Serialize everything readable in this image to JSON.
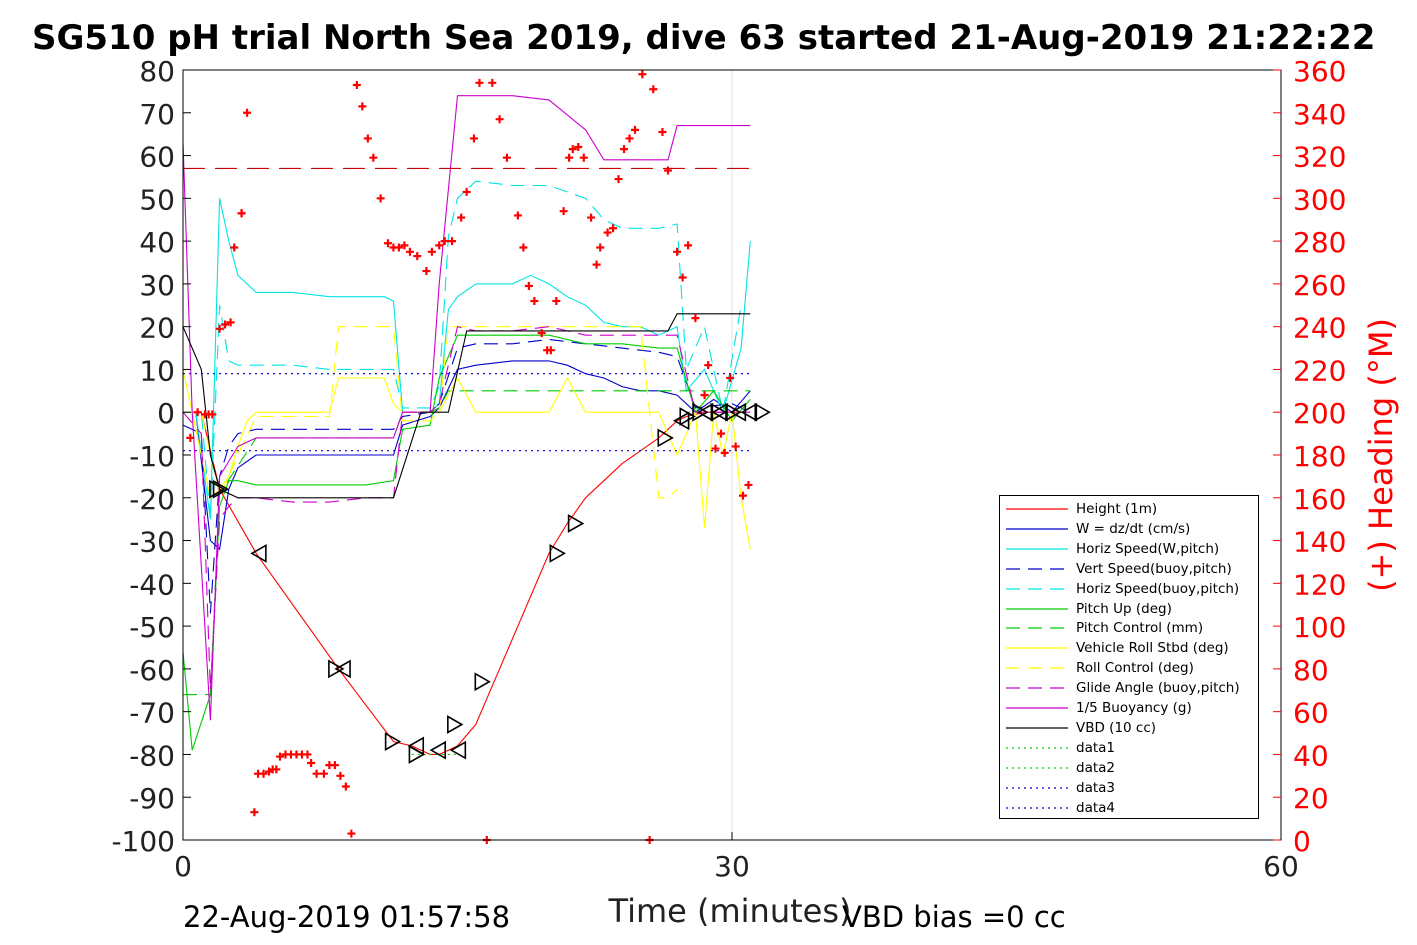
{
  "title": "SG510 pH trial North Sea 2019, dive 63 started 21-Aug-2019 21:22:22",
  "footer": {
    "timestamp": "22-Aug-2019 01:57:58",
    "vbd_bias": "VBD bias =0 cc"
  },
  "chart_data": {
    "type": "line",
    "xlabel": "Time (minutes)",
    "ylabel_right": "(+) Heading (°M)",
    "xlim": [
      0,
      60
    ],
    "ylim": [
      -100,
      80
    ],
    "ylim_right": [
      0,
      360
    ],
    "xticks": [
      0,
      30,
      60
    ],
    "yticks": [
      -100,
      -90,
      -80,
      -70,
      -60,
      -50,
      -40,
      -30,
      -20,
      -10,
      0,
      10,
      20,
      30,
      40,
      50,
      60,
      70,
      80
    ],
    "yticks_right": [
      0,
      20,
      40,
      60,
      80,
      100,
      120,
      140,
      160,
      180,
      200,
      220,
      240,
      260,
      280,
      300,
      320,
      340,
      360
    ],
    "grid": "x only",
    "legend_position": "lower right",
    "colors": {
      "height": "#ff0000",
      "w": "#0000cc",
      "horiz": "#00e5e5",
      "vert_buoy": "#0000cc",
      "horiz_buoy": "#00e5e5",
      "pitch": "#00cc00",
      "pitch_ctrl": "#00cc00",
      "roll": "#ffff00",
      "roll_ctrl": "#ffff00",
      "glide": "#cc00cc",
      "buoy": "#cc00cc",
      "vbd": "#000000",
      "heading_axis": "#ff0000"
    },
    "legend": [
      {
        "label": "Height (1m)",
        "color": "#ff0000",
        "dash": "solid"
      },
      {
        "label": "W = dz/dt (cm/s)",
        "color": "#0000cc",
        "dash": "solid"
      },
      {
        "label": "Horiz Speed(W,pitch)",
        "color": "#00e5e5",
        "dash": "solid"
      },
      {
        "label": "Vert Speed(buoy,pitch)",
        "color": "#0000cc",
        "dash": "dashed"
      },
      {
        "label": "Horiz Speed(buoy,pitch)",
        "color": "#00e5e5",
        "dash": "dashed"
      },
      {
        "label": "Pitch Up (deg)",
        "color": "#00cc00",
        "dash": "solid"
      },
      {
        "label": "Pitch Control (mm)",
        "color": "#00cc00",
        "dash": "dashed"
      },
      {
        "label": "Vehicle Roll Stbd (deg)",
        "color": "#ffff00",
        "dash": "solid"
      },
      {
        "label": "Roll Control (deg)",
        "color": "#ffff00",
        "dash": "dashed"
      },
      {
        "label": "Glide Angle (buoy,pitch)",
        "color": "#cc00cc",
        "dash": "dashed"
      },
      {
        "label": "1/5 Buoyancy (g)",
        "color": "#cc00cc",
        "dash": "solid"
      },
      {
        "label": "VBD (10 cc)",
        "color": "#000000",
        "dash": "solid"
      },
      {
        "label": "data1",
        "color": "#00cc00",
        "dash": "dotted"
      },
      {
        "label": "data2",
        "color": "#00cc00",
        "dash": "dotted"
      },
      {
        "label": "data3",
        "color": "#0000cc",
        "dash": "dotted"
      },
      {
        "label": "data4",
        "color": "#0000cc",
        "dash": "dotted"
      }
    ],
    "series": [
      {
        "key": "height",
        "color": "#ff0000",
        "dash": "solid",
        "x": [
          0,
          1,
          2,
          4,
          8.5,
          11.5,
          12.5,
          13.5,
          14,
          14.5,
          15,
          16,
          17,
          20,
          21,
          22,
          24,
          26,
          27,
          27.5,
          28.5,
          29.5,
          30.5
        ],
        "y": [
          0,
          0,
          -18,
          -33,
          -60,
          -77,
          -78,
          -80,
          -80,
          -79,
          -78,
          -73,
          -63,
          -33,
          -26,
          -20,
          -12,
          -6,
          -2,
          -1,
          0,
          0,
          0
        ]
      },
      {
        "key": "w",
        "color": "#0000cc",
        "dash": "solid",
        "x": [
          0,
          0.7,
          1.5,
          2,
          2.5,
          3,
          4,
          6,
          8,
          10,
          11.5,
          12,
          13.5,
          14,
          15,
          16,
          18,
          20,
          21,
          22,
          23,
          24,
          25,
          26,
          27,
          28,
          29,
          30,
          31
        ],
        "y": [
          0,
          0,
          -30,
          -32,
          -18,
          -13,
          -10,
          -10,
          -10,
          -10,
          -10,
          -3,
          -1,
          1,
          10,
          11,
          12,
          12,
          11,
          9,
          8,
          6,
          5,
          5,
          4,
          0,
          3,
          0,
          5
        ]
      },
      {
        "key": "horiz",
        "color": "#00e5e5",
        "dash": "solid",
        "x": [
          0,
          0.7,
          1.5,
          2,
          2.5,
          3,
          3.5,
          4,
          6,
          8,
          10,
          11,
          11.5,
          12,
          13.5,
          14,
          14.5,
          15,
          16,
          18,
          19,
          20,
          21,
          22,
          23,
          24,
          25,
          26,
          27,
          27.5,
          28.5,
          29.5,
          30.5,
          31
        ],
        "y": [
          0,
          0,
          -25,
          50,
          40,
          32,
          30,
          28,
          28,
          27,
          27,
          27,
          26,
          0,
          0,
          2,
          24,
          27,
          30,
          30,
          32,
          30,
          27,
          25,
          21,
          20,
          20,
          18,
          20,
          5,
          10,
          0,
          15,
          40
        ]
      },
      {
        "key": "vert_buoy",
        "color": "#0000cc",
        "dash": "dashed",
        "x": [
          0,
          1,
          1.5,
          2,
          2.5,
          3,
          4,
          6,
          8,
          10,
          11.5,
          12,
          13.5,
          14,
          15,
          16,
          18,
          20,
          22,
          24,
          26,
          27,
          28,
          30,
          31
        ],
        "y": [
          -3,
          -5,
          -47,
          -15,
          -8,
          -5,
          -4,
          -4,
          -4,
          -4,
          -4,
          -1,
          0,
          2,
          15,
          16,
          16,
          17,
          16,
          15,
          14,
          13,
          1,
          2,
          0
        ]
      },
      {
        "key": "horiz_buoy",
        "color": "#00e5e5",
        "dash": "dashed",
        "x": [
          0,
          1,
          1.5,
          2,
          2.5,
          3,
          4,
          6,
          8,
          10,
          11.5,
          12,
          13.5,
          14,
          14.5,
          15,
          16,
          18,
          20,
          22,
          23,
          24,
          25,
          26,
          27,
          27.5,
          28.5,
          29.5,
          30.5
        ],
        "y": [
          0,
          0,
          -25,
          25,
          12,
          11,
          11,
          11,
          10,
          10,
          10,
          1,
          1,
          6,
          41,
          50,
          54,
          53,
          53,
          50,
          45,
          43,
          43,
          43,
          44,
          10,
          20,
          0,
          25
        ]
      },
      {
        "key": "pitch",
        "color": "#00cc00",
        "dash": "solid",
        "x": [
          0,
          0.5,
          1.5,
          2,
          2.5,
          3,
          4,
          6,
          8,
          10,
          11.5,
          12,
          13.5,
          14,
          15,
          16,
          18,
          20,
          22,
          24,
          26,
          27,
          28,
          29,
          30,
          31
        ],
        "y": [
          -56,
          -79,
          -66,
          -22,
          -16,
          -16,
          -17,
          -17,
          -17,
          -17,
          -16,
          -4,
          -3,
          8,
          18,
          18,
          18,
          18,
          16,
          16,
          15,
          15,
          0,
          5,
          -2,
          3
        ]
      },
      {
        "key": "pitch_ctrl",
        "color": "#00cc00",
        "dash": "dashed",
        "x": [
          0,
          1.5,
          2,
          4,
          6,
          8,
          10,
          11.5,
          12,
          13.5,
          14,
          14.5,
          16,
          20,
          24,
          27,
          28,
          31
        ],
        "y": [
          -66,
          -66,
          -19,
          -6,
          -6,
          -6,
          -6,
          -6,
          0,
          0,
          1,
          5,
          5,
          5,
          5,
          5,
          5,
          5
        ]
      },
      {
        "key": "roll",
        "color": "#ffff00",
        "dash": "solid",
        "x": [
          0,
          0.5,
          1,
          1.5,
          2,
          2.5,
          3,
          3.5,
          4,
          6,
          8,
          8.5,
          9,
          11,
          11.5,
          12,
          13.5,
          14,
          15,
          16,
          18,
          19,
          20,
          21,
          22,
          23,
          24,
          25,
          26,
          27,
          27.5,
          28,
          28.5,
          29,
          29.5,
          30,
          30.5,
          31
        ],
        "y": [
          10,
          0,
          -10,
          -20,
          -18,
          -15,
          -8,
          -2,
          0,
          0,
          0,
          8,
          8,
          8,
          2,
          0,
          0,
          0,
          8,
          0,
          0,
          0,
          0,
          8,
          0,
          0,
          0,
          0,
          0,
          -10,
          -5,
          0,
          -27,
          0,
          -10,
          0,
          -20,
          -32
        ]
      },
      {
        "key": "roll_ctrl",
        "color": "#ffff00",
        "dash": "dashed",
        "x": [
          0,
          1,
          2,
          3,
          4,
          6,
          8,
          8.5,
          9,
          11,
          11.5,
          12,
          13.5,
          14,
          14.5,
          15,
          16,
          18,
          20,
          22,
          24,
          25,
          26,
          26.5,
          27
        ],
        "y": [
          0,
          0,
          -20,
          -10,
          -1,
          -1,
          -1,
          20,
          20,
          20,
          20,
          -2,
          -2,
          0,
          20,
          20,
          20,
          20,
          20,
          20,
          20,
          20,
          -20,
          -20,
          -18
        ]
      },
      {
        "key": "glide",
        "color": "#cc00cc",
        "dash": "dashed",
        "x": [
          0,
          1,
          1.5,
          2,
          2.5,
          3,
          4,
          6,
          8,
          10,
          11.5,
          12,
          13.5,
          14,
          15,
          16,
          18,
          20,
          22,
          24,
          26,
          27,
          28,
          30,
          31
        ],
        "y": [
          0,
          -5,
          -65,
          -25,
          -22,
          -20,
          -20,
          -21,
          -21,
          -20,
          -20,
          0,
          0,
          2,
          20,
          19,
          19,
          20,
          18,
          18,
          18,
          18,
          0,
          0,
          0
        ]
      },
      {
        "key": "buoy",
        "color": "#cc00cc",
        "dash": "solid",
        "x": [
          0,
          0.5,
          1.5,
          2,
          3,
          4,
          6,
          8,
          10,
          11.5,
          12,
          13.5,
          14,
          15,
          16,
          18,
          20,
          22,
          23,
          24,
          25,
          26,
          26.5,
          27,
          31
        ],
        "y": [
          63,
          0,
          -72,
          -15,
          -8,
          -6,
          -6,
          -6,
          -6,
          -6,
          0,
          0,
          30,
          74,
          74,
          74,
          73,
          66,
          59,
          59,
          59,
          59,
          59,
          67,
          67
        ]
      },
      {
        "key": "vbd",
        "color": "#000000",
        "dash": "solid",
        "x": [
          0,
          1,
          1.5,
          2,
          3,
          4,
          6,
          8,
          10,
          11.5,
          13,
          14.5,
          15.5,
          16,
          18,
          20,
          22,
          24,
          26,
          26.5,
          27,
          31
        ],
        "y": [
          20,
          10,
          -10,
          -18,
          -20,
          -20,
          -20,
          -20,
          -20,
          -20,
          0,
          0,
          19,
          19,
          19,
          19,
          19,
          19,
          19,
          19,
          23,
          23
        ]
      },
      {
        "key": "pitch_ref",
        "color": "#cc0000",
        "dash": "longdash",
        "x": [
          0,
          31
        ],
        "y": [
          57,
          57
        ]
      },
      {
        "key": "data3",
        "color": "#0000cc",
        "dash": "dotted",
        "x": [
          0,
          31
        ],
        "y": [
          9,
          9
        ]
      },
      {
        "key": "data4",
        "color": "#0000cc",
        "dash": "dotted",
        "x": [
          0,
          31
        ],
        "y": [
          -9,
          -9
        ]
      },
      {
        "key": "data1",
        "color": "#00cc00",
        "dash": "dotted",
        "x": [
          12.5,
          15
        ],
        "y": [
          -80,
          -80
        ]
      }
    ],
    "heading_points": [
      [
        0.4,
        188
      ],
      [
        0.8,
        200
      ],
      [
        1.2,
        199
      ],
      [
        1.4,
        199
      ],
      [
        1.6,
        199
      ],
      [
        2,
        239
      ],
      [
        2.3,
        241
      ],
      [
        2.6,
        242
      ],
      [
        2.8,
        277
      ],
      [
        3.2,
        293
      ],
      [
        3.2,
        293
      ],
      [
        3.5,
        340
      ],
      [
        3.9,
        13
      ],
      [
        4.1,
        31
      ],
      [
        4.4,
        31
      ],
      [
        4.7,
        32
      ],
      [
        4.9,
        33
      ],
      [
        5.1,
        33
      ],
      [
        5.3,
        39
      ],
      [
        5.6,
        40
      ],
      [
        5.9,
        40
      ],
      [
        6.2,
        40
      ],
      [
        6.5,
        40
      ],
      [
        6.8,
        40
      ],
      [
        7,
        36
      ],
      [
        7.3,
        31
      ],
      [
        7.7,
        31
      ],
      [
        8,
        35
      ],
      [
        8.3,
        35
      ],
      [
        8.6,
        30
      ],
      [
        8.9,
        25
      ],
      [
        9.2,
        3
      ],
      [
        9.5,
        353
      ],
      [
        9.8,
        343
      ],
      [
        10.1,
        328
      ],
      [
        10.4,
        319
      ],
      [
        10.8,
        300
      ],
      [
        11.2,
        279
      ],
      [
        11.5,
        277
      ],
      [
        11.8,
        277
      ],
      [
        12.1,
        278
      ],
      [
        12.4,
        275
      ],
      [
        12.8,
        273
      ],
      [
        13.3,
        266
      ],
      [
        13.6,
        275
      ],
      [
        14,
        278
      ],
      [
        14.3,
        280
      ],
      [
        14.7,
        280
      ],
      [
        15.2,
        291
      ],
      [
        15.5,
        303
      ],
      [
        15.9,
        328
      ],
      [
        16.2,
        354
      ],
      [
        16.6,
        0
      ],
      [
        16.9,
        354
      ],
      [
        17.3,
        337
      ],
      [
        17.7,
        319
      ],
      [
        18.3,
        292
      ],
      [
        18.6,
        277
      ],
      [
        18.9,
        259
      ],
      [
        19.2,
        252
      ],
      [
        19.6,
        237
      ],
      [
        19.9,
        229
      ],
      [
        20.1,
        229
      ],
      [
        20.4,
        252
      ],
      [
        20.8,
        294
      ],
      [
        21.1,
        319
      ],
      [
        21.3,
        323
      ],
      [
        21.6,
        324
      ],
      [
        21.9,
        319
      ],
      [
        22.3,
        291
      ],
      [
        22.6,
        269
      ],
      [
        22.8,
        277
      ],
      [
        23.2,
        284
      ],
      [
        23.5,
        286
      ],
      [
        23.8,
        309
      ],
      [
        24.1,
        323
      ],
      [
        24.4,
        328
      ],
      [
        24.7,
        332
      ],
      [
        25.1,
        358
      ],
      [
        25.5,
        0
      ],
      [
        25.7,
        351
      ],
      [
        26.2,
        331
      ],
      [
        26.5,
        313
      ],
      [
        27,
        275
      ],
      [
        27.3,
        263
      ],
      [
        27.6,
        278
      ],
      [
        28,
        244
      ],
      [
        28.5,
        208
      ],
      [
        28.7,
        222
      ],
      [
        29.1,
        183
      ],
      [
        29.4,
        190
      ],
      [
        29.6,
        181
      ],
      [
        29.9,
        216
      ],
      [
        30.2,
        184
      ],
      [
        30.6,
        161
      ],
      [
        30.9,
        166
      ]
    ],
    "markers_right": [
      [
        1.8,
        -18
      ],
      [
        2,
        -18
      ],
      [
        8.3,
        -60
      ],
      [
        11.4,
        -77
      ],
      [
        12.7,
        -80
      ],
      [
        14.8,
        -73
      ],
      [
        16.3,
        -63
      ],
      [
        20.4,
        -33
      ],
      [
        21.4,
        -26
      ],
      [
        26.3,
        -6
      ],
      [
        27.5,
        -1
      ],
      [
        28.2,
        0
      ],
      [
        29.2,
        0
      ],
      [
        30,
        0
      ],
      [
        31.6,
        0
      ]
    ],
    "markers_left": [
      [
        4.2,
        -33
      ],
      [
        8.8,
        -60
      ],
      [
        12.8,
        -78
      ],
      [
        14,
        -79
      ],
      [
        15.1,
        -79
      ],
      [
        27.3,
        -2
      ],
      [
        28.6,
        0
      ],
      [
        29.4,
        0
      ],
      [
        30.4,
        0
      ],
      [
        31,
        0
      ]
    ]
  }
}
